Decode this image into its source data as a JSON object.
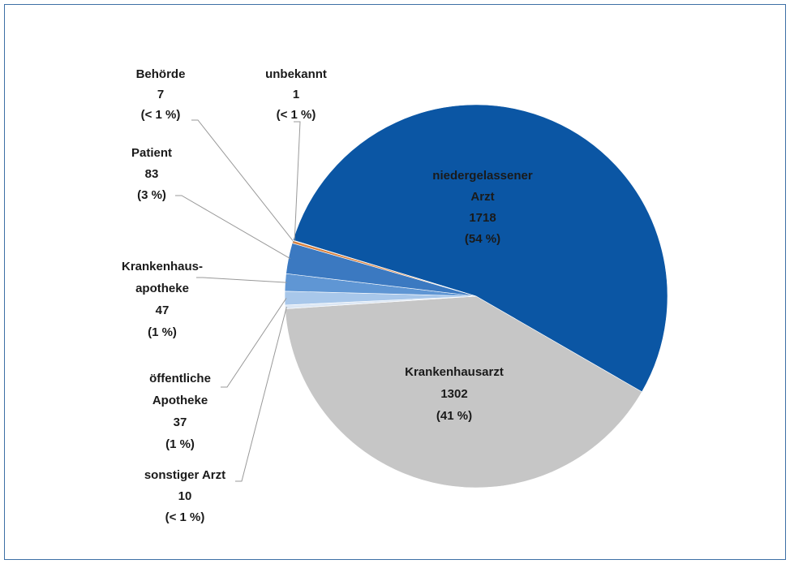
{
  "chart_data": {
    "type": "pie",
    "categories": [
      "niedergelassener\nArzt",
      "Krankenhausarzt",
      "sonstiger Arzt",
      "öffentliche\nApotheke",
      "Krankenhaus-\napotheke",
      "Patient",
      "Behörde",
      "unbekannt"
    ],
    "values": [
      1718,
      1302,
      10,
      37,
      47,
      83,
      7,
      1
    ],
    "percent_labels": [
      "(54 %)",
      "(41 %)",
      "(< 1 %)",
      "(1 %)",
      "(1 %)",
      "(3 %)",
      "(< 1 %)",
      "(< 1 %)"
    ],
    "colors": [
      "#0b56a4",
      "#c6c6c6",
      "#dce7f4",
      "#a8c7ea",
      "#5f96d4",
      "#3b79c1",
      "#d9823f",
      "#8a6a3a"
    ]
  }
}
